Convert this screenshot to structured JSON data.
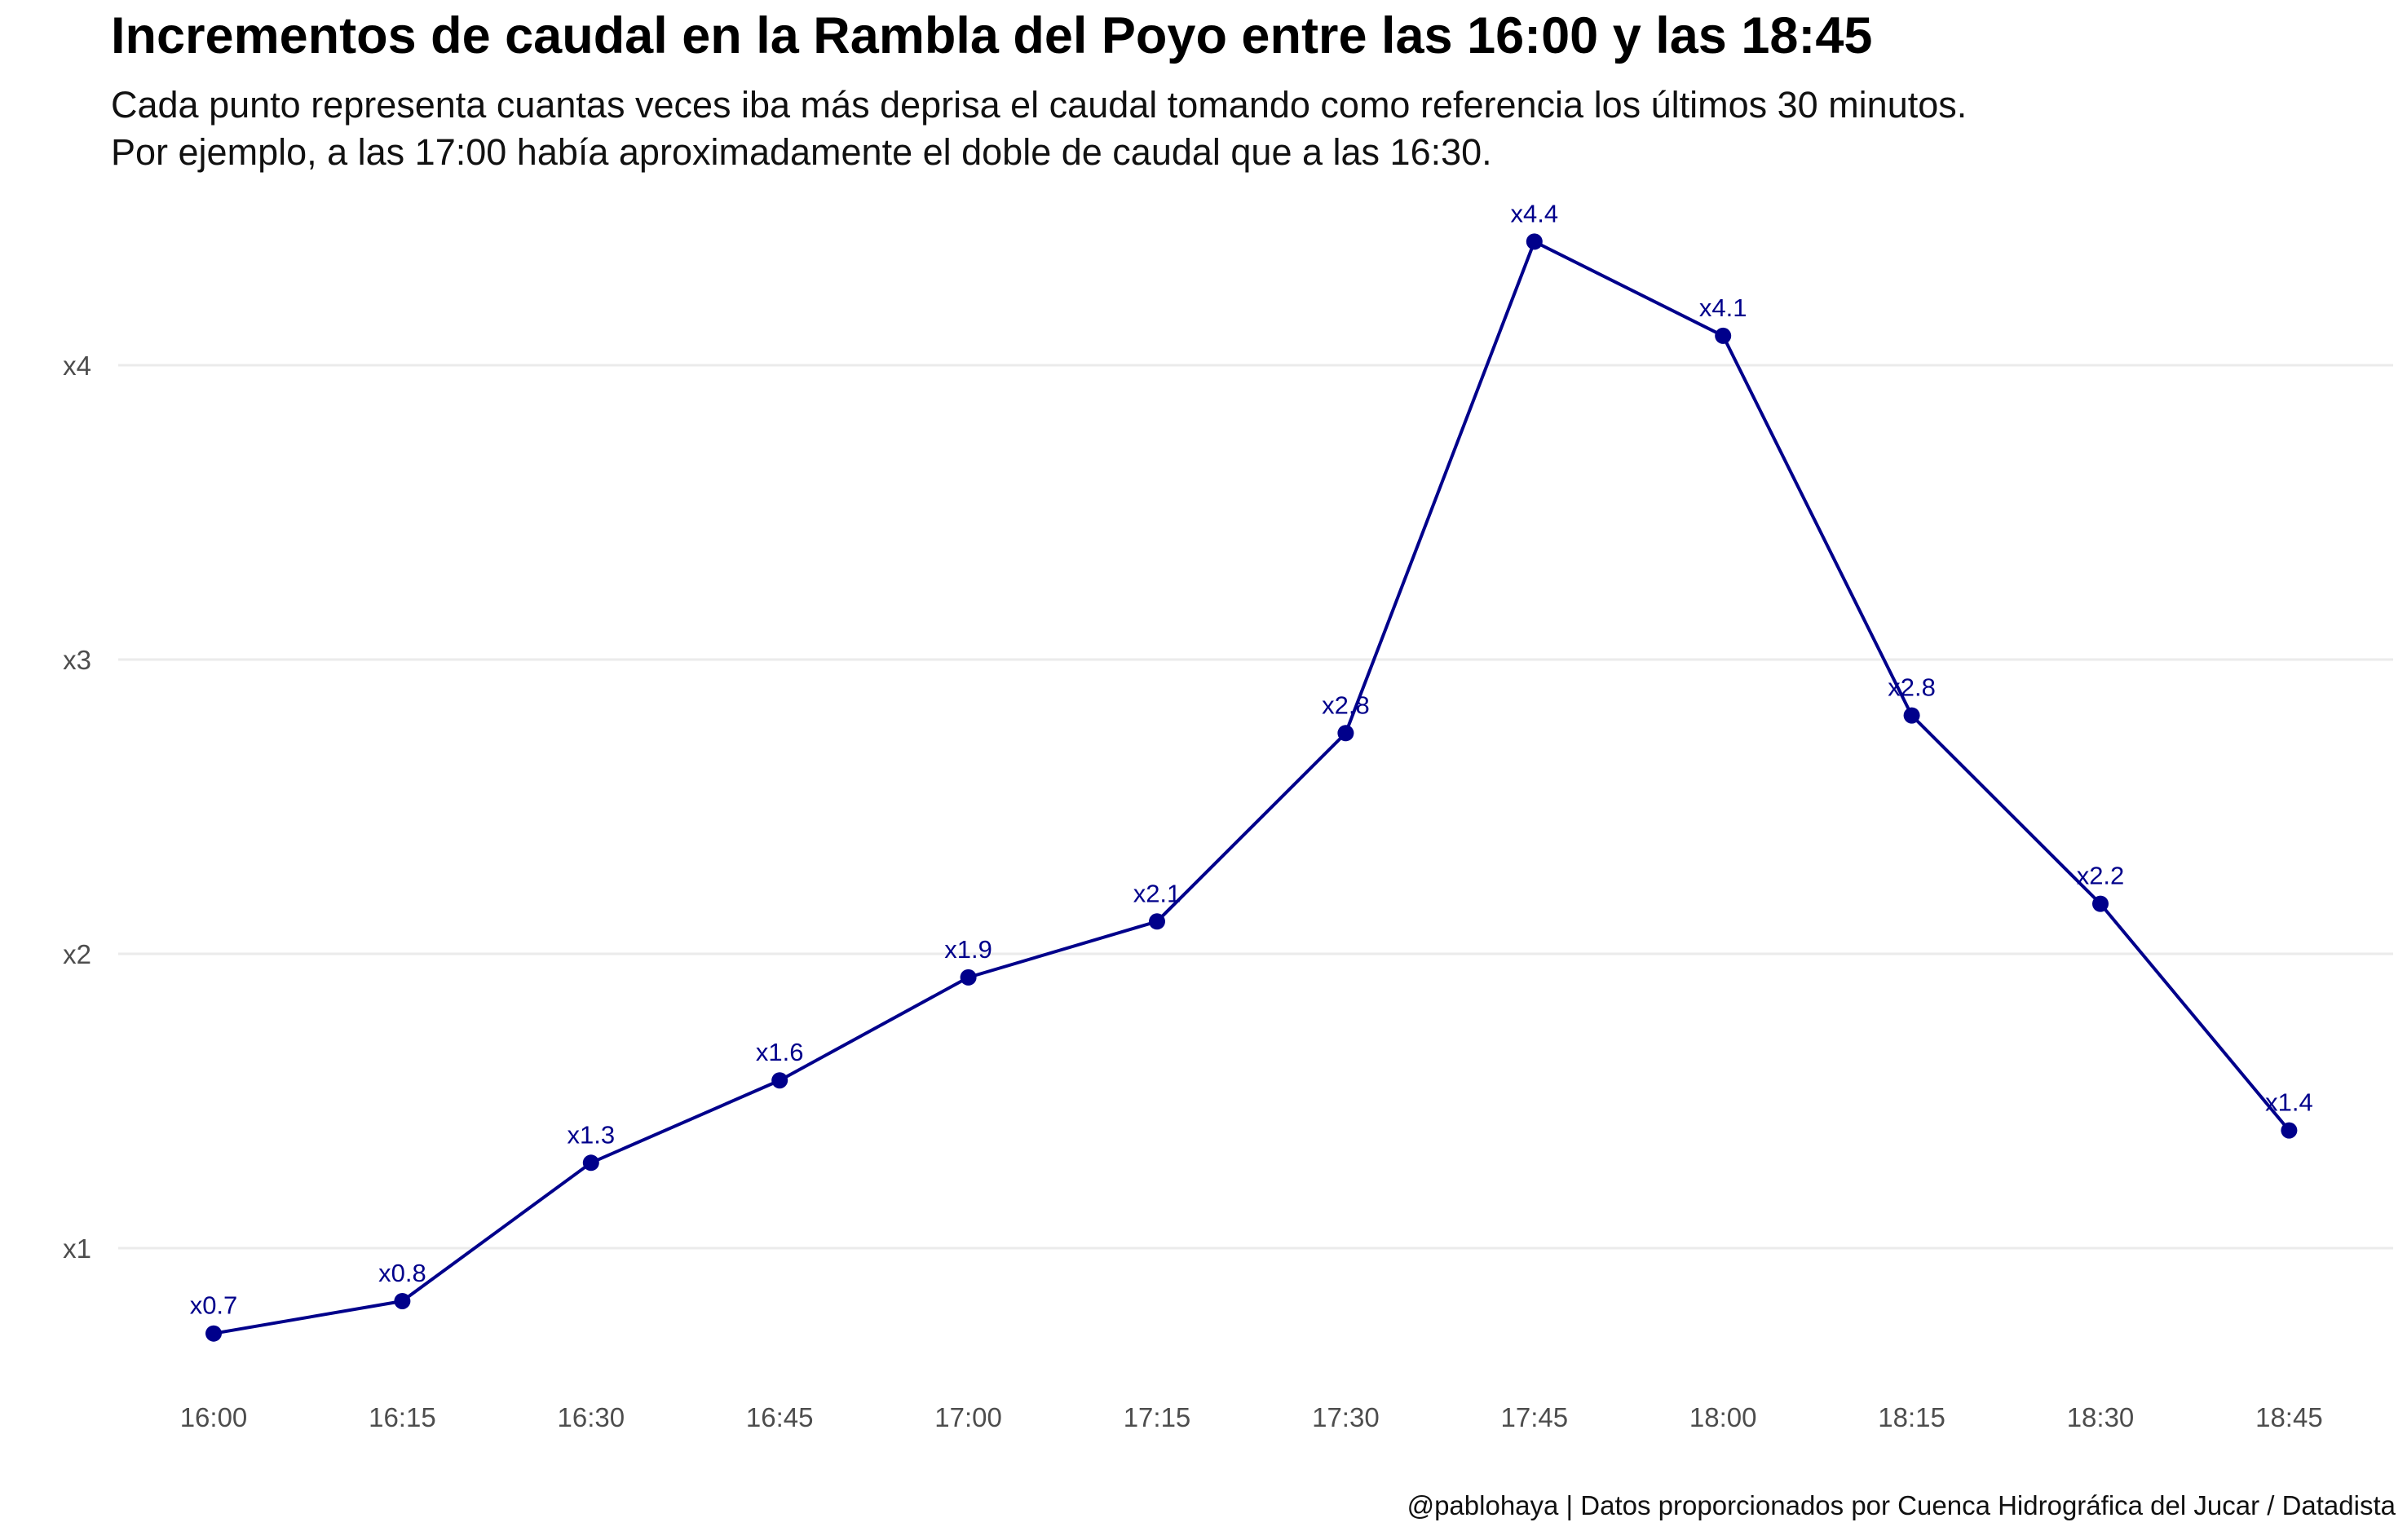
{
  "title": "Incrementos de caudal en la Rambla del Poyo entre las 16:00 y las 18:45",
  "subtitle": [
    "Cada punto representa cuantas veces iba más deprisa el caudal tomando como referencia los últimos 30 minutos.",
    "Por ejemplo, a las 17:00 había aproximadamente el doble de caudal que a las 16:30."
  ],
  "caption": "@pablohaya | Datos proporcionados por Cuenca Hidrográfica del Jucar / Datadista",
  "chart_data": {
    "type": "line",
    "title": "Incrementos de caudal en la Rambla del Poyo entre las 16:00 y las 18:45",
    "xlabel": "",
    "ylabel": "",
    "categories": [
      "16:00",
      "16:15",
      "16:30",
      "16:45",
      "17:00",
      "17:15",
      "17:30",
      "17:45",
      "18:00",
      "18:15",
      "18:30",
      "18:45"
    ],
    "series": [
      {
        "values": [
          0.71,
          0.82,
          1.29,
          1.57,
          1.92,
          2.11,
          2.75,
          4.42,
          4.1,
          2.81,
          2.17,
          1.4
        ],
        "labels": [
          "x0.7",
          "x0.8",
          "x1.3",
          "x1.6",
          "x1.9",
          "x2.1",
          "x2.8",
          "x4.4",
          "x4.1",
          "x2.8",
          "x2.2",
          "x1.4"
        ],
        "color": "#00008B"
      }
    ],
    "ylim": [
      0.55,
      4.5
    ],
    "yticks": [
      1,
      2,
      3,
      4
    ],
    "ytick_labels": [
      "x1",
      "x2",
      "x3",
      "x4"
    ],
    "grid": "horizontal",
    "gridline_color": "#ebebeb"
  }
}
